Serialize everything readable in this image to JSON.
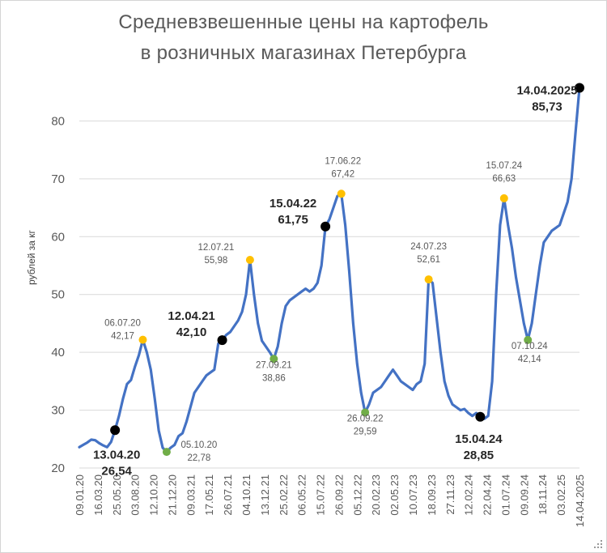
{
  "title_line1": "Средневзвешенные цены на картофель",
  "title_line2": "в розничных магазинах Петербурга",
  "colors": {
    "line": "#4472c4",
    "grid": "#d9d9d9",
    "peak": "#ffc000",
    "trough": "#70ad47",
    "april": "#000000"
  },
  "chart_data": {
    "type": "line",
    "title": "Средневзвешенные цены на картофель в розничных магазинах Петербурга",
    "xlabel": "",
    "ylabel": "рублей за кг",
    "ylim": [
      20,
      90
    ],
    "yticks": [
      20,
      30,
      40,
      50,
      60,
      70,
      80
    ],
    "grid": "horizontal",
    "x_tick_labels": [
      "09.01.20",
      "16.03.20",
      "25.05.20",
      "03.08.20",
      "12.10.20",
      "21.12.20",
      "09.03.21",
      "17.05.21",
      "26.07.21",
      "04.10.21",
      "13.12.21",
      "25.02.22",
      "06.05.22",
      "15.07.22",
      "26.09.22",
      "05.12.22",
      "20.02.23",
      "02.05.23",
      "10.07.23",
      "18.09.23",
      "27.11.23",
      "12.02.24",
      "22.04.24",
      "01.07.24",
      "09.09.24",
      "18.11.24",
      "03.02.25",
      "14.04.2025"
    ],
    "series": [
      {
        "values": [
          [
            0,
            23.6
          ],
          [
            1,
            24.0
          ],
          [
            2,
            24.4
          ],
          [
            3,
            24.9
          ],
          [
            4,
            24.8
          ],
          [
            5,
            24.3
          ],
          [
            6,
            23.9
          ],
          [
            7,
            23.6
          ],
          [
            8,
            24.5
          ],
          [
            9,
            26.54
          ],
          [
            10,
            29.0
          ],
          [
            11,
            32.0
          ],
          [
            12,
            34.5
          ],
          [
            13,
            35.2
          ],
          [
            14,
            37.5
          ],
          [
            15,
            39.5
          ],
          [
            16,
            42.17
          ],
          [
            17,
            40.0
          ],
          [
            18,
            37.0
          ],
          [
            19,
            32.0
          ],
          [
            20,
            26.5
          ],
          [
            21,
            23.5
          ],
          [
            22,
            22.78
          ],
          [
            23,
            23.5
          ],
          [
            24,
            24.0
          ],
          [
            25,
            25.5
          ],
          [
            26,
            26.0
          ],
          [
            27,
            28.0
          ],
          [
            28,
            30.5
          ],
          [
            29,
            33.0
          ],
          [
            30,
            34.0
          ],
          [
            31,
            35.0
          ],
          [
            32,
            36.0
          ],
          [
            33,
            36.5
          ],
          [
            34,
            37.0
          ],
          [
            35,
            41.5
          ],
          [
            36,
            42.1
          ],
          [
            37,
            43.0
          ],
          [
            38,
            43.5
          ],
          [
            39,
            44.5
          ],
          [
            40,
            45.5
          ],
          [
            41,
            47.0
          ],
          [
            42,
            50.0
          ],
          [
            43,
            55.98
          ],
          [
            44,
            50.0
          ],
          [
            45,
            45.0
          ],
          [
            46,
            42.0
          ],
          [
            47,
            41.0
          ],
          [
            48,
            40.0
          ],
          [
            49,
            38.86
          ],
          [
            50,
            41.0
          ],
          [
            51,
            45.0
          ],
          [
            52,
            48.0
          ],
          [
            53,
            49.0
          ],
          [
            54,
            49.5
          ],
          [
            55,
            50.0
          ],
          [
            56,
            50.5
          ],
          [
            57,
            51.0
          ],
          [
            58,
            50.5
          ],
          [
            59,
            51.0
          ],
          [
            60,
            52.0
          ],
          [
            61,
            55.0
          ],
          [
            62,
            61.75
          ],
          [
            63,
            63.0
          ],
          [
            64,
            65.0
          ],
          [
            65,
            67.0
          ],
          [
            66,
            67.42
          ],
          [
            67,
            62.0
          ],
          [
            68,
            54.0
          ],
          [
            69,
            45.0
          ],
          [
            70,
            38.0
          ],
          [
            71,
            33.0
          ],
          [
            72,
            29.59
          ],
          [
            73,
            31.0
          ],
          [
            74,
            33.0
          ],
          [
            75,
            33.5
          ],
          [
            76,
            34.0
          ],
          [
            77,
            35.0
          ],
          [
            78,
            36.0
          ],
          [
            79,
            37.0
          ],
          [
            80,
            36.0
          ],
          [
            81,
            35.0
          ],
          [
            82,
            34.5
          ],
          [
            83,
            34.0
          ],
          [
            84,
            33.5
          ],
          [
            85,
            34.5
          ],
          [
            86,
            35.0
          ],
          [
            87,
            38.0
          ],
          [
            88,
            52.61
          ],
          [
            89,
            52.0
          ],
          [
            90,
            46.0
          ],
          [
            91,
            40.0
          ],
          [
            92,
            35.0
          ],
          [
            93,
            32.5
          ],
          [
            94,
            31.0
          ],
          [
            95,
            30.5
          ],
          [
            96,
            30.0
          ],
          [
            97,
            30.2
          ],
          [
            98,
            29.5
          ],
          [
            99,
            29.0
          ],
          [
            100,
            29.5
          ],
          [
            101,
            28.85
          ],
          [
            102,
            28.5
          ],
          [
            103,
            29.0
          ],
          [
            104,
            35.0
          ],
          [
            105,
            50.0
          ],
          [
            106,
            62.0
          ],
          [
            107,
            66.63
          ],
          [
            108,
            62.0
          ],
          [
            109,
            58.0
          ],
          [
            110,
            53.0
          ],
          [
            111,
            49.0
          ],
          [
            112,
            45.0
          ],
          [
            113,
            42.14
          ],
          [
            114,
            45.0
          ],
          [
            115,
            50.0
          ],
          [
            116,
            55.0
          ],
          [
            117,
            59.0
          ],
          [
            118,
            60.0
          ],
          [
            119,
            61.0
          ],
          [
            120,
            61.5
          ],
          [
            121,
            62.0
          ],
          [
            122,
            64.0
          ],
          [
            123,
            66.0
          ],
          [
            124,
            70.0
          ],
          [
            125,
            78.0
          ],
          [
            126,
            85.73
          ]
        ]
      }
    ],
    "annotations": [
      {
        "idx": 9,
        "date": "13.04.20",
        "value": "26,54",
        "kind": "april"
      },
      {
        "idx": 16,
        "date": "06.07.20",
        "value": "42,17",
        "kind": "peak"
      },
      {
        "idx": 22,
        "date": "05.10.20",
        "value": "22,78",
        "kind": "trough"
      },
      {
        "idx": 36,
        "date": "12.04.21",
        "value": "42,10",
        "kind": "april"
      },
      {
        "idx": 43,
        "date": "12.07.21",
        "value": "55,98",
        "kind": "peak"
      },
      {
        "idx": 49,
        "date": "27.09.21",
        "value": "38,86",
        "kind": "trough"
      },
      {
        "idx": 62,
        "date": "15.04.22",
        "value": "61,75",
        "kind": "april"
      },
      {
        "idx": 66,
        "date": "17.06.22",
        "value": "67,42",
        "kind": "peak"
      },
      {
        "idx": 72,
        "date": "26.09.22",
        "value": "29,59",
        "kind": "trough"
      },
      {
        "idx": 88,
        "date": "24.07.23",
        "value": "52,61",
        "kind": "peak"
      },
      {
        "idx": 101,
        "date": "15.04.24",
        "value": "28,85",
        "kind": "april"
      },
      {
        "idx": 107,
        "date": "15.07.24",
        "value": "66,63",
        "kind": "peak"
      },
      {
        "idx": 113,
        "date": "07.10.24",
        "value": "42,14",
        "kind": "trough"
      },
      {
        "idx": 126,
        "date": "14.04.2025",
        "value": "85,73",
        "kind": "april"
      }
    ]
  }
}
